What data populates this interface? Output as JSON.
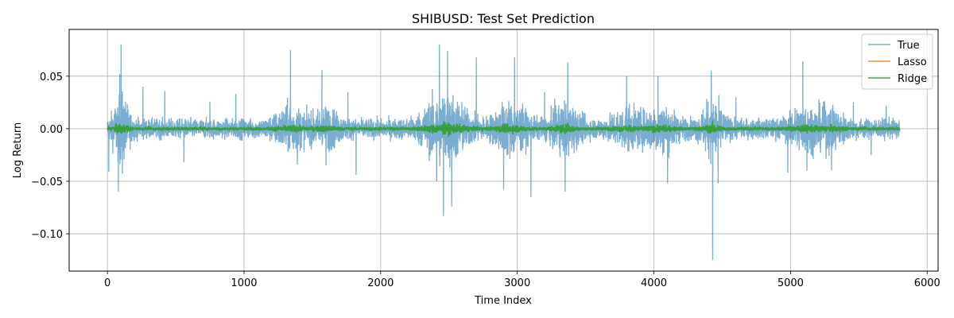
{
  "chart_data": {
    "type": "line",
    "title": "SHIBUSD: Test Set Prediction",
    "xlabel": "Time Index",
    "ylabel": "Log Return",
    "xlim": [
      -280,
      6080
    ],
    "ylim": [
      -0.1355,
      0.0945
    ],
    "xticks": [
      0,
      1000,
      2000,
      3000,
      4000,
      5000,
      6000
    ],
    "xtick_labels": [
      "0",
      "1000",
      "2000",
      "3000",
      "4000",
      "5000",
      "6000"
    ],
    "yticks": [
      0.05,
      0.0,
      -0.05,
      -0.1
    ],
    "ytick_labels": [
      "0.05",
      "0.00",
      "−0.05",
      "−0.10"
    ],
    "grid": true,
    "legend_position": "upper right",
    "n_points": 5800,
    "series": [
      {
        "name": "True",
        "color": "#1f77b4",
        "opacity": 0.6,
        "description": "noisy log returns centered at zero",
        "spikes": [
          {
            "x": 10,
            "y": -0.041
          },
          {
            "x": 80,
            "y": -0.06
          },
          {
            "x": 90,
            "y": 0.052
          },
          {
            "x": 100,
            "y": 0.08
          },
          {
            "x": 110,
            "y": -0.043
          },
          {
            "x": 260,
            "y": 0.04
          },
          {
            "x": 420,
            "y": 0.036
          },
          {
            "x": 560,
            "y": -0.032
          },
          {
            "x": 750,
            "y": 0.026
          },
          {
            "x": 940,
            "y": 0.033
          },
          {
            "x": 1340,
            "y": 0.075
          },
          {
            "x": 1390,
            "y": -0.034
          },
          {
            "x": 1570,
            "y": 0.056
          },
          {
            "x": 1600,
            "y": -0.035
          },
          {
            "x": 1760,
            "y": 0.035
          },
          {
            "x": 1820,
            "y": -0.044
          },
          {
            "x": 2410,
            "y": -0.05
          },
          {
            "x": 2430,
            "y": 0.08
          },
          {
            "x": 2460,
            "y": -0.083
          },
          {
            "x": 2490,
            "y": 0.074
          },
          {
            "x": 2520,
            "y": -0.074
          },
          {
            "x": 2700,
            "y": 0.068
          },
          {
            "x": 2900,
            "y": -0.058
          },
          {
            "x": 2980,
            "y": 0.068
          },
          {
            "x": 3100,
            "y": -0.065
          },
          {
            "x": 3200,
            "y": 0.035
          },
          {
            "x": 3370,
            "y": 0.063
          },
          {
            "x": 3350,
            "y": -0.06
          },
          {
            "x": 3800,
            "y": 0.05
          },
          {
            "x": 4030,
            "y": 0.05
          },
          {
            "x": 4100,
            "y": -0.052
          },
          {
            "x": 4420,
            "y": 0.055
          },
          {
            "x": 4430,
            "y": -0.125
          },
          {
            "x": 4470,
            "y": -0.052
          },
          {
            "x": 4600,
            "y": 0.03
          },
          {
            "x": 4980,
            "y": -0.042
          },
          {
            "x": 5090,
            "y": 0.064
          },
          {
            "x": 5120,
            "y": -0.04
          },
          {
            "x": 5300,
            "y": -0.04
          },
          {
            "x": 5460,
            "y": 0.025
          },
          {
            "x": 5590,
            "y": -0.025
          },
          {
            "x": 5700,
            "y": 0.022
          }
        ]
      },
      {
        "name": "Lasso",
        "color": "#ff7f0e",
        "opacity": 0.9,
        "description": "flat at zero"
      },
      {
        "name": "Ridge",
        "color": "#2ca02c",
        "opacity": 0.9,
        "description": "small fluctuations around zero",
        "spikes": [
          {
            "x": 90,
            "y": 0.005
          },
          {
            "x": 100,
            "y": -0.004
          },
          {
            "x": 2460,
            "y": 0.007
          },
          {
            "x": 2900,
            "y": 0.005
          },
          {
            "x": 3370,
            "y": 0.006
          },
          {
            "x": 4430,
            "y": 0.008
          },
          {
            "x": 5090,
            "y": 0.004
          }
        ]
      }
    ]
  }
}
